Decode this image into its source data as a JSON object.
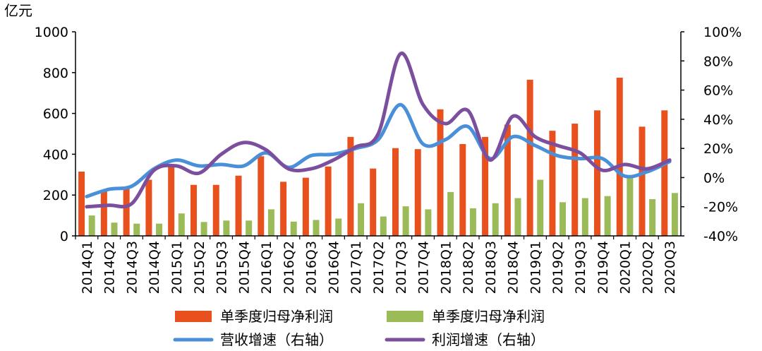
{
  "chart_data": {
    "type": "bar",
    "title": "",
    "unit_left": "亿元",
    "categories": [
      "2014Q1",
      "2014Q2",
      "2014Q3",
      "2014Q4",
      "2015Q1",
      "2015Q2",
      "2015Q3",
      "2015Q4",
      "2016Q1",
      "2016Q2",
      "2016Q3",
      "2016Q4",
      "2017Q1",
      "2017Q2",
      "2017Q3",
      "2017Q4",
      "2018Q1",
      "2018Q2",
      "2018Q3",
      "2018Q4",
      "2019Q1",
      "2019Q2",
      "2019Q3",
      "2019Q4",
      "2020Q1",
      "2020Q2",
      "2020Q3"
    ],
    "left_axis": {
      "ylim": [
        0,
        1000
      ],
      "ticks": [
        "0",
        "200",
        "400",
        "600",
        "800",
        "1000"
      ]
    },
    "right_axis": {
      "ylim": [
        -40,
        100
      ],
      "ticks": [
        "-40%",
        "-20%",
        "0%",
        "20%",
        "40%",
        "60%",
        "80%",
        "100%"
      ]
    },
    "grid": false,
    "legend_position": "bottom",
    "colors": {
      "orange": "#E8501E",
      "green": "#9BBB59",
      "blue": "#4A90D9",
      "purple": "#7B4E9E"
    },
    "series": [
      {
        "name": "单季度归母净利润",
        "type": "bar",
        "axis": "left",
        "color": "#E8501E",
        "values": [
          315,
          220,
          230,
          275,
          345,
          250,
          250,
          295,
          390,
          265,
          285,
          340,
          485,
          330,
          430,
          425,
          620,
          450,
          485,
          545,
          765,
          515,
          550,
          615,
          775,
          535,
          615
        ]
      },
      {
        "name": "单季度归母净利润",
        "type": "bar",
        "axis": "left",
        "color": "#9BBB59",
        "values": [
          100,
          65,
          60,
          60,
          110,
          68,
          75,
          75,
          130,
          70,
          78,
          85,
          160,
          95,
          145,
          130,
          215,
          135,
          160,
          185,
          275,
          165,
          185,
          195,
          290,
          180,
          210
        ]
      },
      {
        "name": "营收增速（右轴）",
        "type": "line",
        "axis": "right",
        "color": "#4A90D9",
        "values": [
          -13,
          -8,
          -6,
          6,
          12,
          8,
          9,
          8,
          17,
          7,
          15,
          16,
          20,
          26,
          50,
          23,
          26,
          35,
          13,
          28,
          22,
          15,
          13,
          13,
          1,
          4,
          11
        ]
      },
      {
        "name": "利润增速（右轴）",
        "type": "line",
        "axis": "right",
        "color": "#7B4E9E",
        "values": [
          -20,
          -19,
          -18,
          5,
          8,
          3,
          16,
          24,
          19,
          6,
          6,
          12,
          21,
          30,
          85,
          50,
          37,
          46,
          12,
          42,
          28,
          22,
          17,
          5,
          9,
          6,
          12
        ]
      }
    ]
  }
}
